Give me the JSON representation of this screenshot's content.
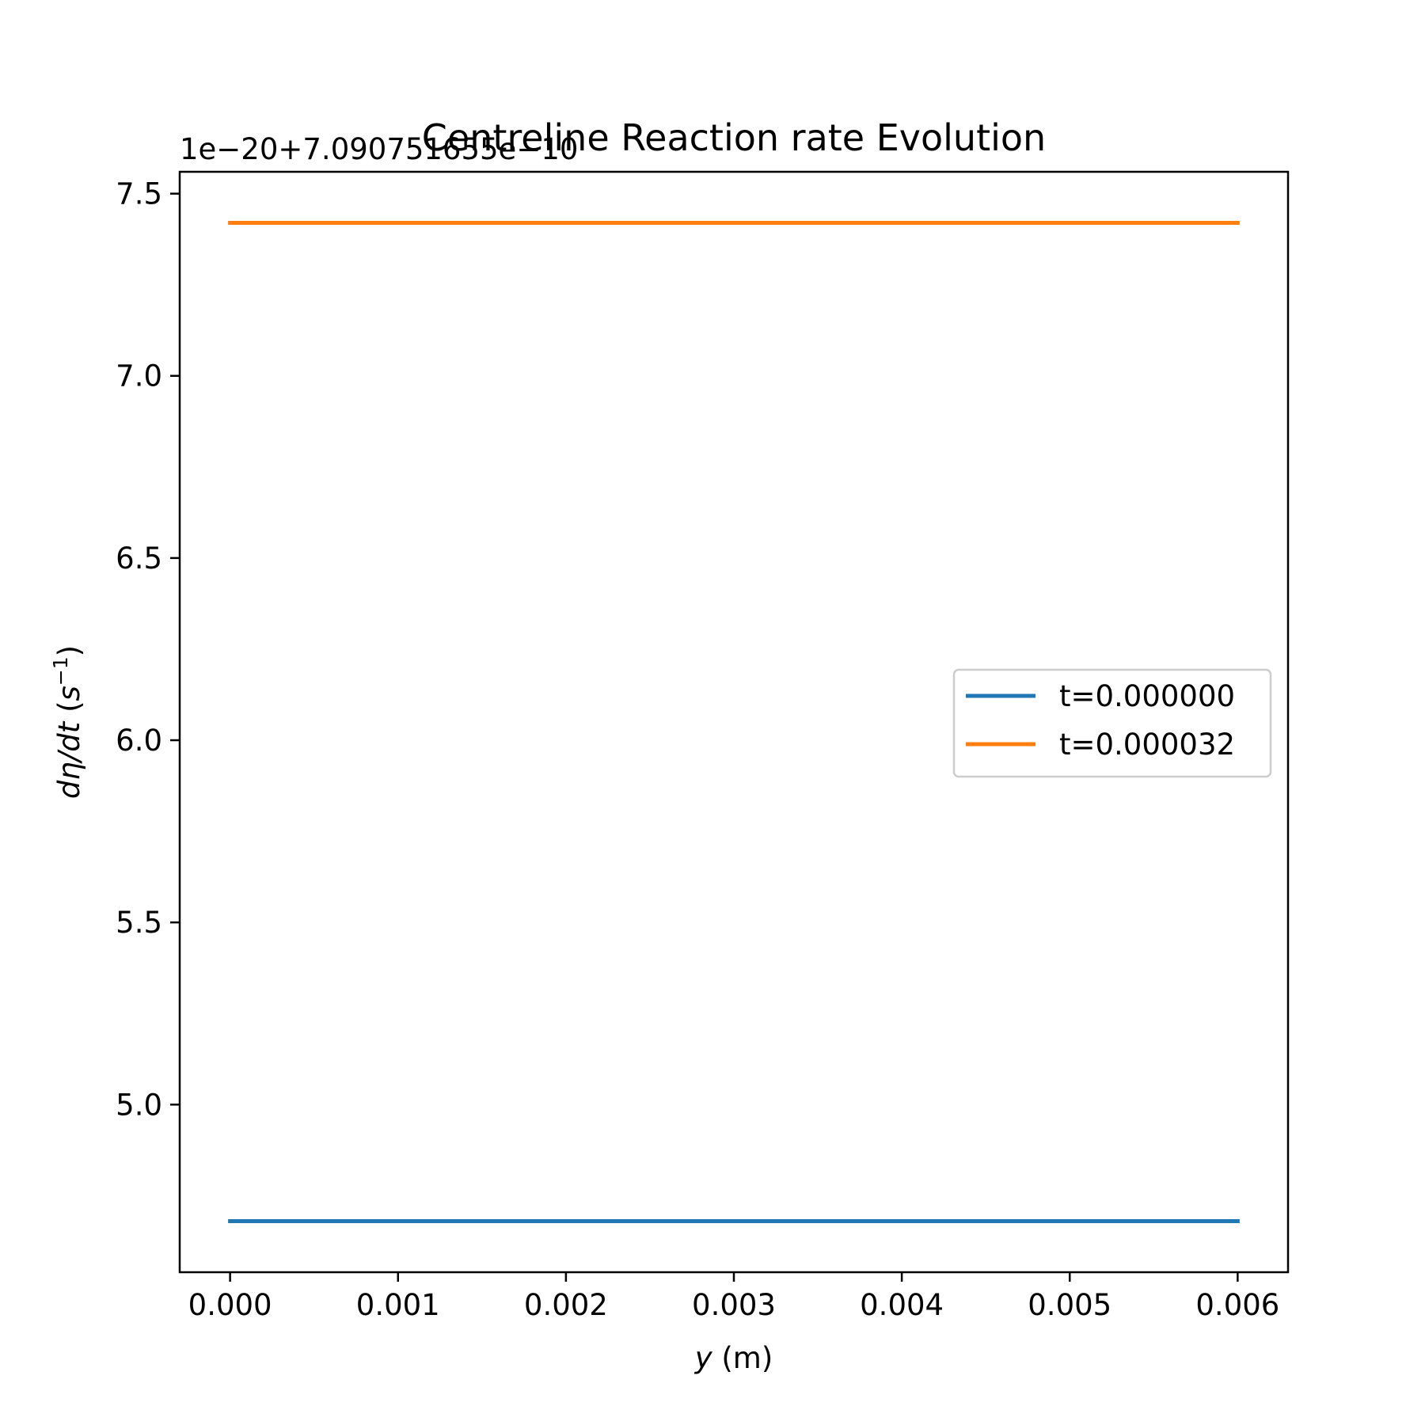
{
  "chart_data": {
    "type": "line",
    "title": "Centreline Reaction rate Evolution",
    "xlabel": "y (m)",
    "xlabel_var": "y",
    "xlabel_unit": " (m)",
    "ylabel": "dη/dt (s⁻¹)",
    "ylabel_var": "dη/dt",
    "ylabel_unit_open": " (",
    "ylabel_unit_base": "s",
    "ylabel_unit_exp": "−1",
    "ylabel_unit_close": ")",
    "y_offset_text": "1e−20+7.090751655e−10",
    "xlim": [
      -0.0003,
      0.0063
    ],
    "ylim": [
      4.54,
      7.56
    ],
    "x_ticks": [
      0.0,
      0.001,
      0.002,
      0.003,
      0.004,
      0.005,
      0.006
    ],
    "x_tick_labels": [
      "0.000",
      "0.001",
      "0.002",
      "0.003",
      "0.004",
      "0.005",
      "0.006"
    ],
    "y_ticks": [
      5.0,
      5.5,
      6.0,
      6.5,
      7.0,
      7.5
    ],
    "y_tick_labels": [
      "5.0",
      "5.5",
      "6.0",
      "6.5",
      "7.0",
      "7.5"
    ],
    "grid": false,
    "legend_position": "center-right",
    "series": [
      {
        "name": "t=0.000000",
        "color": "#1f77b4",
        "x": [
          0.0,
          0.001,
          0.002,
          0.003,
          0.004,
          0.005,
          0.006
        ],
        "y": [
          4.68,
          4.68,
          4.68,
          4.68,
          4.68,
          4.68,
          4.68
        ]
      },
      {
        "name": "t=0.000032",
        "color": "#ff7f0e",
        "x": [
          0.0,
          0.001,
          0.002,
          0.003,
          0.004,
          0.005,
          0.006
        ],
        "y": [
          7.42,
          7.42,
          7.42,
          7.42,
          7.42,
          7.42,
          7.42
        ]
      }
    ]
  }
}
